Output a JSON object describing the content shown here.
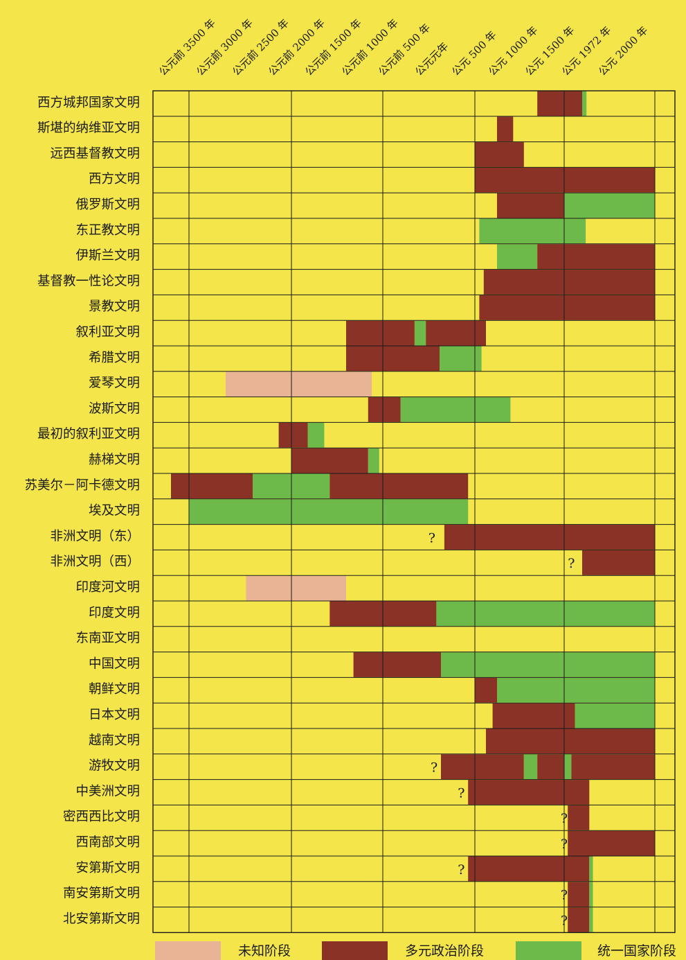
{
  "colors": {
    "background": "#f3e54a",
    "unknown": "#e9b496",
    "pluralistic": "#8b3226",
    "unified": "#6dba4a",
    "grid": "#1a1a1a"
  },
  "chart_data": {
    "type": "timeline-gantt",
    "x_unit": "year (negative = BCE)",
    "xlim": [
      -4000,
      2100
    ],
    "ticks": [
      {
        "year": -3500,
        "label": "公元前 3500 年"
      },
      {
        "year": -3000,
        "label": "公元前 3000 年"
      },
      {
        "year": -2500,
        "label": "公元前 2500 年"
      },
      {
        "year": -2000,
        "label": "公元前 2000 年"
      },
      {
        "year": -1500,
        "label": "公元前 1500 年"
      },
      {
        "year": -1000,
        "label": "公元前 1000 年"
      },
      {
        "year": -500,
        "label": "公元前 500 年"
      },
      {
        "year": 0,
        "label": "公元元年"
      },
      {
        "year": 500,
        "label": "公元 500 年"
      },
      {
        "year": 1000,
        "label": "公元 1000 年"
      },
      {
        "year": 1500,
        "label": "公元 1500 年"
      },
      {
        "year": 1972,
        "label": "公元 1972 年"
      },
      {
        "year": 2000,
        "label": "公元 2000 年"
      }
    ],
    "legend": {
      "placement": "bottom",
      "items": [
        {
          "key": "unknown",
          "label": "未知阶段"
        },
        {
          "key": "pluralistic",
          "label": "多元政治阶段"
        },
        {
          "key": "unified",
          "label": "统一国家阶段"
        }
      ]
    },
    "rows": [
      {
        "name": "西方城邦国家文明",
        "segments": [
          {
            "start": 1300,
            "end": 1750,
            "phase": "pluralistic"
          },
          {
            "start": 1750,
            "end": 1810,
            "phase": "unified"
          }
        ]
      },
      {
        "name": "斯堪的纳维亚文明",
        "segments": [
          {
            "start": 1000,
            "end": 1120,
            "phase": "pluralistic"
          }
        ]
      },
      {
        "name": "远西基督教文明",
        "segments": [
          {
            "start": 500,
            "end": 1200,
            "phase": "pluralistic"
          }
        ]
      },
      {
        "name": "西方文明",
        "segments": [
          {
            "start": 500,
            "end": 2000,
            "phase": "pluralistic"
          }
        ]
      },
      {
        "name": "俄罗斯文明",
        "segments": [
          {
            "start": 1000,
            "end": 1500,
            "phase": "pluralistic"
          },
          {
            "start": 1500,
            "end": 2000,
            "phase": "unified"
          }
        ]
      },
      {
        "name": "东正教文明",
        "segments": [
          {
            "start": 600,
            "end": 1800,
            "phase": "unified"
          }
        ]
      },
      {
        "name": "伊斯兰文明",
        "segments": [
          {
            "start": 1000,
            "end": 1300,
            "phase": "unified"
          },
          {
            "start": 1300,
            "end": 2000,
            "phase": "pluralistic"
          }
        ]
      },
      {
        "name": "基督教一性论文明",
        "segments": [
          {
            "start": 700,
            "end": 2000,
            "phase": "pluralistic"
          }
        ]
      },
      {
        "name": "景教文明",
        "segments": [
          {
            "start": 600,
            "end": 2000,
            "phase": "pluralistic"
          }
        ]
      },
      {
        "name": "叙利亚文明",
        "segments": [
          {
            "start": -1500,
            "end": -550,
            "phase": "pluralistic"
          },
          {
            "start": -550,
            "end": -330,
            "phase": "unified"
          },
          {
            "start": -330,
            "end": 750,
            "phase": "pluralistic"
          }
        ]
      },
      {
        "name": "希腊文明",
        "segments": [
          {
            "start": -1500,
            "end": -30,
            "phase": "pluralistic"
          },
          {
            "start": -30,
            "end": 650,
            "phase": "unified"
          }
        ]
      },
      {
        "name": "爱琴文明",
        "segments": [
          {
            "start": -3000,
            "end": -1150,
            "phase": "unknown"
          }
        ]
      },
      {
        "name": "波斯文明",
        "segments": [
          {
            "start": -1200,
            "end": -750,
            "phase": "pluralistic"
          },
          {
            "start": -750,
            "end": 1100,
            "phase": "unified"
          }
        ]
      },
      {
        "name": "最初的叙利亚文明",
        "segments": [
          {
            "start": -2200,
            "end": -1850,
            "phase": "pluralistic"
          },
          {
            "start": -1850,
            "end": -1700,
            "phase": "unified"
          }
        ]
      },
      {
        "name": "赫梯文明",
        "segments": [
          {
            "start": -2000,
            "end": -1200,
            "phase": "pluralistic"
          },
          {
            "start": -1200,
            "end": -1050,
            "phase": "unified"
          }
        ]
      },
      {
        "name": "苏美尔－阿卡德文明",
        "segments": [
          {
            "start": -3750,
            "end": -2600,
            "phase": "pluralistic"
          },
          {
            "start": -2600,
            "end": -1650,
            "phase": "unified"
          },
          {
            "start": -1650,
            "end": 400,
            "phase": "pluralistic"
          }
        ]
      },
      {
        "name": "埃及文明",
        "segments": [
          {
            "start": -3500,
            "end": 400,
            "phase": "unified"
          }
        ]
      },
      {
        "name": "非洲文明（东）",
        "note": "?",
        "note_year": -200,
        "segments": [
          {
            "start": 50,
            "end": 2000,
            "phase": "pluralistic"
          }
        ]
      },
      {
        "name": "非洲文明（西）",
        "note": "?",
        "note_year": 1600,
        "segments": [
          {
            "start": 1750,
            "end": 2000,
            "phase": "pluralistic"
          }
        ]
      },
      {
        "name": "印度河文明",
        "segments": [
          {
            "start": -2700,
            "end": -1500,
            "phase": "unknown"
          }
        ]
      },
      {
        "name": "印度文明",
        "segments": [
          {
            "start": -1650,
            "end": -100,
            "phase": "pluralistic"
          },
          {
            "start": -100,
            "end": 2000,
            "phase": "unified"
          }
        ]
      },
      {
        "name": "东南亚文明",
        "segments": []
      },
      {
        "name": "中国文明",
        "segments": [
          {
            "start": -1400,
            "end": 0,
            "phase": "pluralistic"
          },
          {
            "start": 0,
            "end": 2000,
            "phase": "unified"
          }
        ]
      },
      {
        "name": "朝鲜文明",
        "segments": [
          {
            "start": 500,
            "end": 1000,
            "phase": "pluralistic"
          },
          {
            "start": 1000,
            "end": 2000,
            "phase": "unified"
          }
        ]
      },
      {
        "name": "日本文明",
        "segments": [
          {
            "start": 900,
            "end": 1650,
            "phase": "pluralistic"
          },
          {
            "start": 1650,
            "end": 2000,
            "phase": "unified"
          }
        ]
      },
      {
        "name": "越南文明",
        "segments": [
          {
            "start": 750,
            "end": 2000,
            "phase": "pluralistic"
          }
        ]
      },
      {
        "name": "游牧文明",
        "note": "?",
        "note_year": -150,
        "segments": [
          {
            "start": 0,
            "end": 1200,
            "phase": "pluralistic"
          },
          {
            "start": 1200,
            "end": 1300,
            "phase": "unified"
          },
          {
            "start": 1300,
            "end": 1500,
            "phase": "pluralistic"
          },
          {
            "start": 1500,
            "end": 1600,
            "phase": "unified"
          },
          {
            "start": 1600,
            "end": 2000,
            "phase": "pluralistic"
          }
        ]
      },
      {
        "name": "中美洲文明",
        "note": "?",
        "note_year": 300,
        "segments": [
          {
            "start": 400,
            "end": 1850,
            "phase": "pluralistic"
          }
        ]
      },
      {
        "name": "密西西比文明",
        "note": "?",
        "note_year": 1500,
        "segments": [
          {
            "start": 1550,
            "end": 1850,
            "phase": "pluralistic"
          }
        ]
      },
      {
        "name": "西南部文明",
        "note": "?",
        "note_year": 1500,
        "segments": [
          {
            "start": 1550,
            "end": 2000,
            "phase": "pluralistic"
          }
        ]
      },
      {
        "name": "安第斯文明",
        "note": "?",
        "note_year": 300,
        "segments": [
          {
            "start": 400,
            "end": 1850,
            "phase": "pluralistic"
          },
          {
            "start": 1850,
            "end": 1900,
            "phase": "unified"
          }
        ]
      },
      {
        "name": "南安第斯文明",
        "note": "?",
        "note_year": 1500,
        "segments": [
          {
            "start": 1550,
            "end": 1850,
            "phase": "pluralistic"
          },
          {
            "start": 1850,
            "end": 1900,
            "phase": "unified"
          }
        ]
      },
      {
        "name": "北安第斯文明",
        "note": "?",
        "note_year": 1500,
        "segments": [
          {
            "start": 1550,
            "end": 1850,
            "phase": "pluralistic"
          },
          {
            "start": 1850,
            "end": 1900,
            "phase": "unified"
          }
        ]
      }
    ]
  }
}
